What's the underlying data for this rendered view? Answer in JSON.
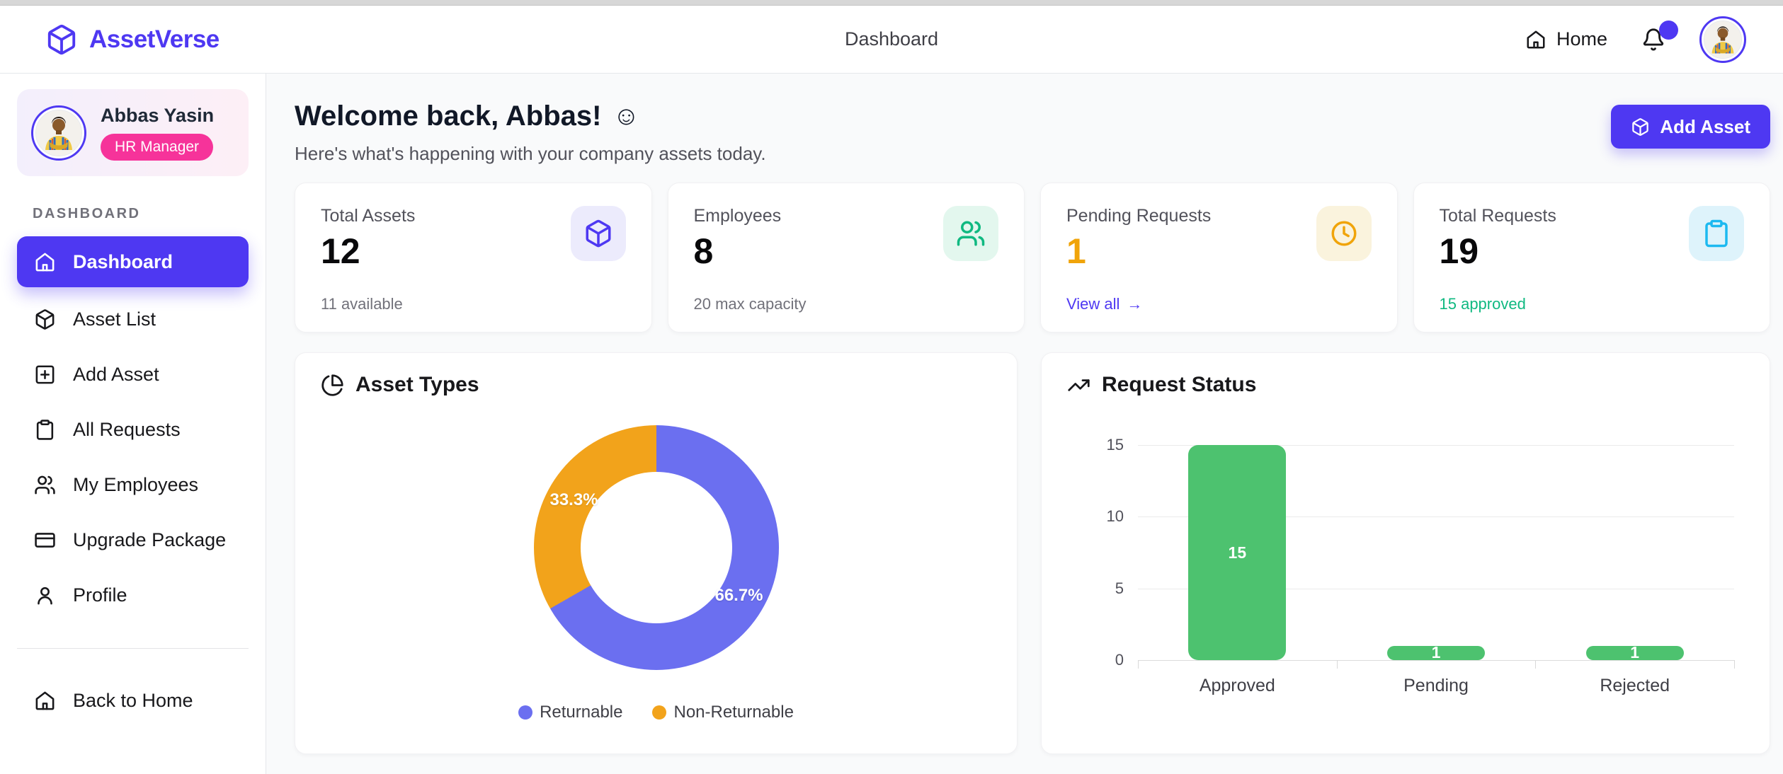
{
  "theme": {
    "primary": "#4E38F2",
    "pink": "#F6339A",
    "donut_blue": "#6B6FF0",
    "donut_orange": "#F2A31B",
    "bar_green": "#4DC26F"
  },
  "navbar": {
    "brand": "AssetVerse",
    "page_title": "Dashboard",
    "home_label": "Home"
  },
  "sidebar": {
    "user": {
      "name": "Abbas Yasin",
      "role": "HR Manager"
    },
    "section_label": "DASHBOARD",
    "items": [
      {
        "label": "Dashboard",
        "icon": "house-icon",
        "active": true
      },
      {
        "label": "Asset List",
        "icon": "box-icon",
        "active": false
      },
      {
        "label": "Add Asset",
        "icon": "square-plus-icon",
        "active": false
      },
      {
        "label": "All Requests",
        "icon": "clipboard-icon",
        "active": false
      },
      {
        "label": "My Employees",
        "icon": "users-icon",
        "active": false
      },
      {
        "label": "Upgrade Package",
        "icon": "credit-card-icon",
        "active": false
      },
      {
        "label": "Profile",
        "icon": "user-icon",
        "active": false
      }
    ],
    "back_home_label": "Back to Home"
  },
  "header": {
    "title": "Welcome back, Abbas!",
    "emoji": "☺",
    "subtitle": "Here's what's happening with your company assets today.",
    "add_asset_label": "Add Asset"
  },
  "stats": [
    {
      "label": "Total Assets",
      "value": "12",
      "footer": "11 available",
      "icon": "box-icon",
      "tile_bg": "#ECEBFC",
      "tile_fg": "#4E38F2",
      "value_color": "#09090B",
      "footer_color": "#71717A"
    },
    {
      "label": "Employees",
      "value": "8",
      "footer": "20 max capacity",
      "icon": "users-icon",
      "tile_bg": "#E3F7EE",
      "tile_fg": "#10B981",
      "value_color": "#09090B",
      "footer_color": "#71717A"
    },
    {
      "label": "Pending Requests",
      "value": "1",
      "link": "View all",
      "link_arrow": "→",
      "icon": "clock-icon",
      "tile_bg": "#FAF3DD",
      "tile_fg": "#F0A40A",
      "value_color": "#F0A40A"
    },
    {
      "label": "Total Requests",
      "value": "19",
      "footer": "15 approved",
      "icon": "clipboard-icon",
      "tile_bg": "#DEF3FB",
      "tile_fg": "#1CB9F0",
      "value_color": "#09090B",
      "footer_color": "#10B981"
    }
  ],
  "chart_data": [
    {
      "type": "pie",
      "donut": true,
      "title": "Asset Types",
      "labels": [
        "Returnable",
        "Non-Returnable"
      ],
      "values": [
        66.7,
        33.3
      ],
      "value_labels": [
        "66.7%",
        "33.3%"
      ],
      "colors": [
        "#6B6FF0",
        "#F2A31B"
      ],
      "legend_position": "bottom"
    },
    {
      "type": "bar",
      "title": "Request Status",
      "categories": [
        "Approved",
        "Pending",
        "Rejected"
      ],
      "values": [
        15,
        1,
        1
      ],
      "bar_labels": [
        "15",
        "1",
        "1"
      ],
      "bar_color": "#4DC26F",
      "ylim": [
        0,
        15
      ],
      "yticks": [
        "15",
        "10",
        "5",
        "0"
      ],
      "grid": true,
      "legend_position": "none"
    }
  ]
}
